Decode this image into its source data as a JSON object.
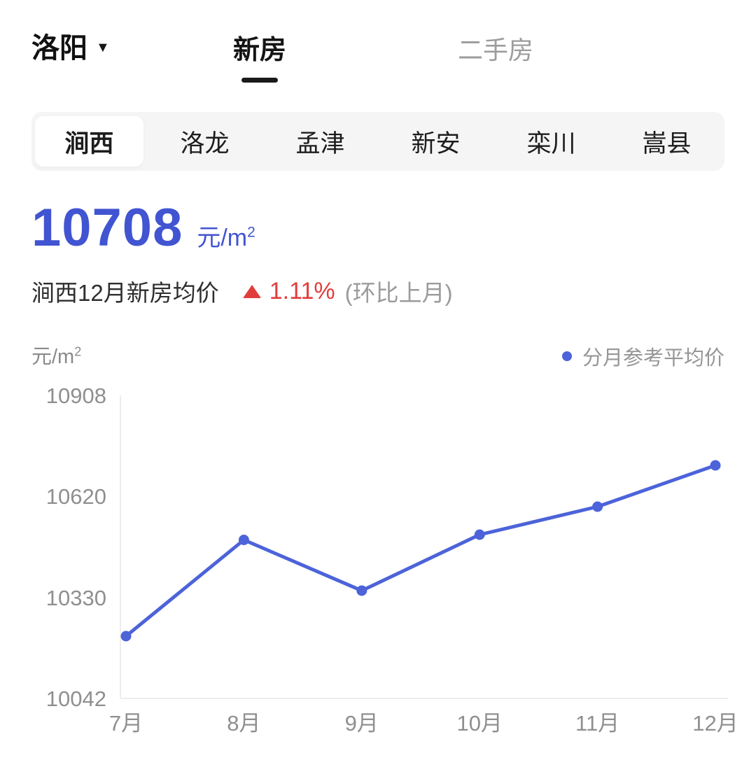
{
  "header": {
    "city": "洛阳",
    "tabs": [
      {
        "label": "新房",
        "active": true
      },
      {
        "label": "二手房",
        "active": false
      }
    ]
  },
  "districts": {
    "items": [
      {
        "label": "涧西",
        "selected": true
      },
      {
        "label": "洛龙",
        "selected": false
      },
      {
        "label": "孟津",
        "selected": false
      },
      {
        "label": "新安",
        "selected": false
      },
      {
        "label": "栾川",
        "selected": false
      },
      {
        "label": "嵩县",
        "selected": false
      }
    ]
  },
  "price": {
    "value": "10708",
    "unit_base": "元/m",
    "unit_sup": "2",
    "subtitle": "涧西12月新房均价",
    "change": "1.11%",
    "change_direction": "up",
    "change_note": "(环比上月)"
  },
  "chart_data": {
    "type": "line",
    "title": "分月参考平均价",
    "ylabel_base": "元/m",
    "ylabel_sup": "2",
    "categories": [
      "7月",
      "8月",
      "9月",
      "10月",
      "11月",
      "12月"
    ],
    "series": [
      {
        "name": "分月参考平均价",
        "values": [
          10220,
          10495,
          10350,
          10510,
          10590,
          10708
        ]
      }
    ],
    "yticks": [
      10908,
      10620,
      10330,
      10042
    ],
    "ylim": [
      10042,
      10908
    ],
    "grid": false,
    "legend_position": "top-right",
    "colors": {
      "line": "#4c63d9",
      "dot": "#4c63d9",
      "accent": "#4154d1",
      "up": "#e23d3d"
    }
  }
}
